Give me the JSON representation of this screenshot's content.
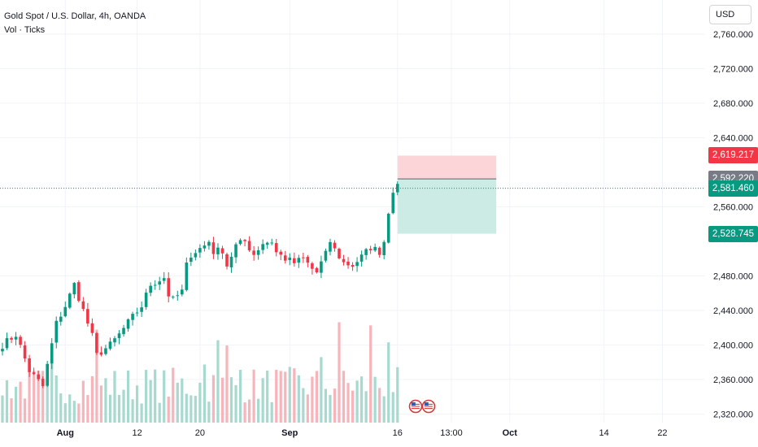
{
  "legend": {
    "title": "Gold Spot / U.S. Dollar, 4h, OANDA",
    "indicator": "Vol · Ticks"
  },
  "currency_button": {
    "label": "USD"
  },
  "price_tags": {
    "stop_loss": "2,619.217",
    "entry": "2,592.220",
    "current": "2,581.460",
    "take_profit": "2,528.745"
  },
  "colors": {
    "up": "#089981",
    "down": "#f23645",
    "vol_up": "#a7d9cf",
    "vol_down": "#f7b5bb",
    "stop_zone": "#fcd5d8",
    "target_zone": "#cdebe5",
    "entry_tag": "#787b86"
  },
  "chart_data": {
    "type": "candlestick",
    "ylim": [
      2310,
      2790
    ],
    "y_ticks": [
      {
        "value": 2320,
        "label": "2,320.000"
      },
      {
        "value": 2360,
        "label": "2,360.000"
      },
      {
        "value": 2400,
        "label": "2,400.000"
      },
      {
        "value": 2440,
        "label": "2,440.000"
      },
      {
        "value": 2480,
        "label": "2,480.000"
      },
      {
        "value": 2560,
        "label": "2,560.000"
      },
      {
        "value": 2640,
        "label": "2,640.000"
      },
      {
        "value": 2680,
        "label": "2,680.000"
      },
      {
        "value": 2720,
        "label": "2,720.000"
      },
      {
        "value": 2760,
        "label": "2,760.000"
      }
    ],
    "x_ticks": [
      {
        "bar": 14,
        "label": "Aug"
      },
      {
        "bar": 30,
        "label": "12"
      },
      {
        "bar": 44,
        "label": "20"
      },
      {
        "bar": 64,
        "label": "Sep"
      },
      {
        "bar": 88,
        "label": "16"
      },
      {
        "bar": 100,
        "label": "13:00"
      },
      {
        "bar": 113,
        "label": "Oct"
      },
      {
        "bar": 134,
        "label": "14"
      },
      {
        "bar": 147,
        "label": "22"
      }
    ],
    "current_price": 2581.46,
    "position": {
      "entry": 2592.22,
      "stop": 2619.217,
      "target": 2528.745,
      "start_bar": 88,
      "end_bar": 110
    },
    "keypoints": [
      [
        0,
        2400
      ],
      [
        3,
        2412
      ],
      [
        6,
        2370
      ],
      [
        9,
        2352
      ],
      [
        12,
        2425
      ],
      [
        14,
        2445
      ],
      [
        16,
        2470
      ],
      [
        18,
        2440
      ],
      [
        20,
        2410
      ],
      [
        21,
        2388
      ],
      [
        24,
        2400
      ],
      [
        26,
        2412
      ],
      [
        28,
        2426
      ],
      [
        31,
        2445
      ],
      [
        33,
        2470
      ],
      [
        36,
        2478
      ],
      [
        37,
        2458
      ],
      [
        38,
        2452
      ],
      [
        40,
        2462
      ],
      [
        41,
        2492
      ],
      [
        42,
        2505
      ],
      [
        45,
        2515
      ],
      [
        46,
        2520
      ],
      [
        47,
        2508
      ],
      [
        49,
        2510
      ],
      [
        50,
        2492
      ],
      [
        52,
        2515
      ],
      [
        54,
        2520
      ],
      [
        56,
        2505
      ],
      [
        58,
        2518
      ],
      [
        60,
        2520
      ],
      [
        61,
        2507
      ],
      [
        63,
        2500
      ],
      [
        65,
        2495
      ],
      [
        67,
        2500
      ],
      [
        69,
        2488
      ],
      [
        70,
        2484
      ],
      [
        71,
        2495
      ],
      [
        72,
        2505
      ],
      [
        73,
        2520
      ],
      [
        74,
        2510
      ],
      [
        76,
        2495
      ],
      [
        78,
        2492
      ],
      [
        80,
        2502
      ],
      [
        82,
        2513
      ],
      [
        84,
        2508
      ],
      [
        85,
        2520
      ],
      [
        86,
        2555
      ],
      [
        87,
        2580
      ],
      [
        88,
        2582
      ]
    ],
    "volume_spikes": [
      [
        75,
        0.95
      ],
      [
        21,
        0.88
      ],
      [
        48,
        0.78
      ],
      [
        50,
        0.73
      ],
      [
        82,
        0.92
      ],
      [
        86,
        0.76
      ],
      [
        11,
        0.6
      ],
      [
        53,
        0.5
      ],
      [
        45,
        0.55
      ],
      [
        61,
        0.5
      ],
      [
        71,
        0.62
      ]
    ]
  }
}
